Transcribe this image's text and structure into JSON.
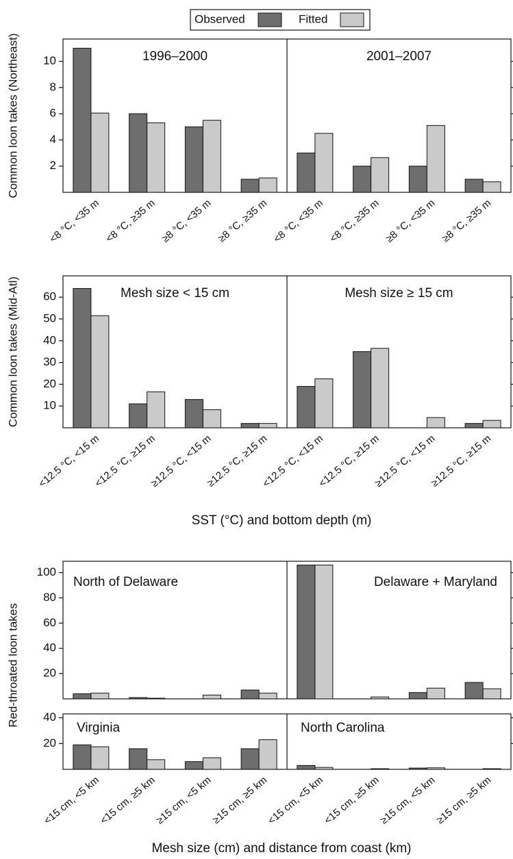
{
  "chart_data": [
    {
      "type": "bar",
      "ylabel": "Common loon takes (Northeast)",
      "panel_titles": [
        "1996–2000",
        "2001–2007"
      ],
      "categories": [
        "<8 °C, <35 m",
        "<8 °C, ≥35 m",
        "≥8 °C, <35 m",
        "≥8 °C, ≥35 m",
        "<8 °C, <35 m",
        "<8 °C, ≥35 m",
        "≥8 °C, <35 m",
        "≥8 °C, ≥35 m"
      ],
      "series": [
        {
          "name": "Observed",
          "color": "#6e6e6e",
          "values": [
            11,
            6,
            5,
            1,
            3,
            2,
            2,
            1
          ]
        },
        {
          "name": "Fitted",
          "color": "#cacaca",
          "values": [
            6.05,
            5.3,
            5.5,
            1.1,
            4.5,
            2.65,
            5.1,
            0.8
          ]
        }
      ],
      "ylim": [
        0,
        11.7
      ],
      "yticks": [
        2,
        4,
        6,
        8,
        10
      ]
    },
    {
      "type": "bar",
      "ylabel": "Common loon takes (Mid-Atl)",
      "xlabel": "SST (°C) and bottom depth (m)",
      "panel_titles": [
        "Mesh size < 15 cm",
        "Mesh size ≥ 15 cm"
      ],
      "categories": [
        "<12.5 °C, <15 m",
        "<12.5 °C, ≥15 m",
        "≥12.5 °C, <15 m",
        "≥12.5 °C, ≥15 m",
        "<12.5 °C, <15 m",
        "<12.5 °C, ≥15 m",
        "≥12.5 °C, <15 m",
        "≥12.5 °C, ≥15 m"
      ],
      "series": [
        {
          "values": [
            64,
            11,
            13,
            2,
            19,
            35,
            0,
            2
          ]
        },
        {
          "values": [
            51.5,
            16.5,
            8.3,
            2,
            22.5,
            36.5,
            4.7,
            3.4
          ]
        }
      ],
      "ylim": [
        0,
        69.8
      ],
      "yticks": [
        10,
        20,
        30,
        40,
        50,
        60
      ]
    },
    {
      "type": "bar",
      "ylabel": "Red-throated loon takes",
      "panel_titles": [
        "North of Delaware",
        "Delaware + Maryland"
      ],
      "series": [
        {
          "values": [
            4,
            1,
            0,
            7,
            106,
            0,
            5,
            13
          ]
        },
        {
          "values": [
            4.5,
            0.5,
            3,
            4.5,
            106,
            1.5,
            8.5,
            8
          ]
        }
      ],
      "ylim": [
        0,
        109
      ],
      "yticks": [
        20,
        40,
        60,
        80,
        100
      ]
    },
    {
      "type": "bar",
      "xlabel": "Mesh size (cm) and distance from coast (km)",
      "panel_titles": [
        "Virginia",
        "North Carolina"
      ],
      "categories": [
        "<15 cm, <5 km",
        "<15 cm, ≥5 km",
        "≥15 cm, <5 km",
        "≥15 cm, ≥5 km",
        "<15 cm, <5 km",
        "<15 cm, ≥5 km",
        "≥15 cm, <5 km",
        "≥15 cm, ≥5 km"
      ],
      "series": [
        {
          "values": [
            19,
            16,
            6,
            16,
            3,
            0,
            1,
            0
          ]
        },
        {
          "values": [
            17.5,
            7.5,
            9,
            23,
            1.5,
            0.5,
            1.2,
            0.5
          ]
        }
      ],
      "ylim": [
        0,
        43
      ],
      "yticks": [
        20,
        40
      ]
    }
  ]
}
